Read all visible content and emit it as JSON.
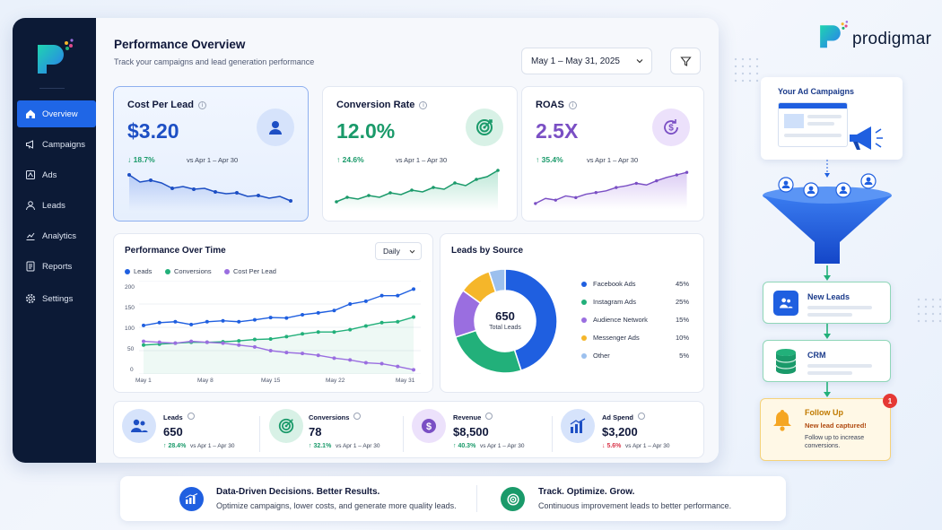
{
  "sidebar": {
    "items": [
      {
        "label": "Overview",
        "icon": "home-icon",
        "active": true
      },
      {
        "label": "Campaigns",
        "icon": "megaphone-icon"
      },
      {
        "label": "Ads",
        "icon": "ad-icon"
      },
      {
        "label": "Leads",
        "icon": "user-icon"
      },
      {
        "label": "Analytics",
        "icon": "analytics-icon"
      },
      {
        "label": "Reports",
        "icon": "report-icon"
      },
      {
        "label": "Settings",
        "icon": "gear-icon"
      }
    ]
  },
  "header": {
    "title": "Performance Overview",
    "subtitle": "Track your campaigns and lead generation performance",
    "date_range": "May 1 – May 31, 2025"
  },
  "kpis": [
    {
      "title": "Cost Per Lead",
      "value": "$3.20",
      "change": "↓ 18.7%",
      "period": "vs Apr 1 – Apr 30",
      "color": "#1d4fc4",
      "icon": "user-icon"
    },
    {
      "title": "Conversion Rate",
      "value": "12.0%",
      "change": "↑ 24.6%",
      "period": "vs Apr 1 – Apr 30",
      "color": "#1a9a6a",
      "icon": "target-icon"
    },
    {
      "title": "ROAS",
      "value": "2.5X",
      "change": "↑ 35.4%",
      "period": "vs Apr 1 – Apr 30",
      "color": "#7a4fc4",
      "icon": "dollar-cycle-icon"
    }
  ],
  "performance_chart": {
    "title": "Performance Over Time",
    "granularity": "Daily",
    "legend": [
      "Leads",
      "Conversions",
      "Cost Per Lead"
    ],
    "yticks": [
      "200",
      "150",
      "100",
      "50",
      "0"
    ],
    "xticks": [
      "May 1",
      "May 8",
      "May 15",
      "May 22",
      "May 31"
    ]
  },
  "leads_by_source": {
    "title": "Leads by Source",
    "total": "650",
    "total_label": "Total Leads",
    "sources": [
      {
        "name": "Facebook Ads",
        "pct": "45%",
        "value": 45,
        "color": "#1f5fe0"
      },
      {
        "name": "Instagram Ads",
        "pct": "25%",
        "value": 25,
        "color": "#22b07a"
      },
      {
        "name": "Audience Network",
        "pct": "15%",
        "value": 15,
        "color": "#9a6ee0"
      },
      {
        "name": "Messenger Ads",
        "pct": "10%",
        "value": 10,
        "color": "#f5b62a"
      },
      {
        "name": "Other",
        "pct": "5%",
        "value": 5,
        "color": "#9cc0ee"
      }
    ]
  },
  "bottom_stats": [
    {
      "label": "Leads",
      "value": "650",
      "change": "↑ 28.4%",
      "period": "vs Apr 1 – Apr 30",
      "icon": "users-icon"
    },
    {
      "label": "Conversions",
      "value": "78",
      "change": "↑ 32.1%",
      "period": "vs Apr 1 – Apr 30",
      "icon": "target-icon"
    },
    {
      "label": "Revenue",
      "value": "$8,500",
      "change": "↑ 40.3%",
      "period": "vs Apr 1 – Apr 30",
      "icon": "dollar-icon"
    },
    {
      "label": "Ad Spend",
      "value": "$3,200",
      "change": "↓ 5.6%",
      "period": "vs Apr 1 – Apr 30",
      "icon": "bar-chart-icon"
    }
  ],
  "banner": {
    "left_title": "Data-Driven Decisions. Better Results.",
    "left_text": "Optimize campaigns, lower costs, and generate more quality leads.",
    "right_title": "Track. Optimize. Grow.",
    "right_text": "Continuous improvement leads to better performance."
  },
  "brand": "prodigmar",
  "flow": {
    "campaigns": "Your Ad Campaigns",
    "new_leads": "New Leads",
    "crm": "CRM",
    "follow_title": "Follow Up",
    "follow_msg": "New lead captured!",
    "follow_text": "Follow up to increase conversions.",
    "badge": "1"
  },
  "chart_data": [
    {
      "type": "line",
      "title": "Performance Over Time",
      "x": [
        "May 1",
        "May 2",
        "May 4",
        "May 6",
        "May 8",
        "May 10",
        "May 12",
        "May 14",
        "May 15",
        "May 17",
        "May 19",
        "May 21",
        "May 22",
        "May 24",
        "May 26",
        "May 28",
        "May 29",
        "May 31"
      ],
      "series": [
        {
          "name": "Leads",
          "color": "#1f5fe0",
          "values": [
            104,
            110,
            112,
            106,
            112,
            114,
            112,
            116,
            121,
            120,
            127,
            131,
            136,
            150,
            156,
            168,
            168,
            182
          ]
        },
        {
          "name": "Conversions",
          "color": "#22b07a",
          "values": [
            62,
            64,
            66,
            68,
            68,
            69,
            71,
            74,
            75,
            80,
            86,
            90,
            90,
            95,
            103,
            110,
            112,
            122
          ]
        },
        {
          "name": "Cost Per Lead",
          "color": "#9a6ee0",
          "values": [
            70,
            68,
            66,
            70,
            68,
            66,
            62,
            58,
            50,
            46,
            44,
            40,
            34,
            30,
            24,
            22,
            16,
            9
          ]
        }
      ],
      "ylim": [
        0,
        200
      ]
    },
    {
      "type": "pie",
      "title": "Leads by Source",
      "categories": [
        "Facebook Ads",
        "Instagram Ads",
        "Audience Network",
        "Messenger Ads",
        "Other"
      ],
      "values": [
        45,
        25,
        15,
        10,
        5
      ]
    }
  ]
}
